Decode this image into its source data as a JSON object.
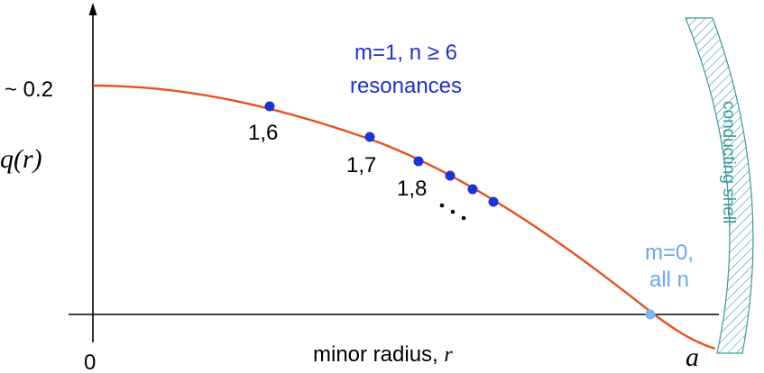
{
  "colors": {
    "curve": "#e8501e",
    "resonance_dot": "#1a34d6",
    "resonance_text": "#2030d0",
    "m0_dot": "#7fb4ee",
    "m0_text": "#6aa9ea",
    "shell": "#3a9a9a",
    "axis": "#000000"
  },
  "y_axis": {
    "label": "q(r)",
    "tick_label": "~ 0.2"
  },
  "x_axis": {
    "label_text": "minor radius, ",
    "label_var": "r",
    "origin_label": "0",
    "end_label": "a"
  },
  "annotations": {
    "resonances_line1": "m=1, n ≥ 6",
    "resonances_line2": "resonances",
    "label_1_6": "1,6",
    "label_1_7": "1,7",
    "label_1_8": "1,8",
    "ellipsis": "…",
    "m0_line1": "m=0,",
    "m0_line2": "all n",
    "shell_label": "conducting  shell"
  }
}
